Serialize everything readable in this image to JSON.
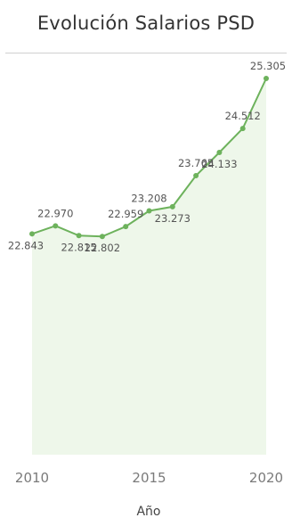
{
  "title": "Evolución Salarios PSD",
  "chart_data": {
    "type": "area",
    "title": "Evolución Salarios PSD",
    "xlabel": "Año",
    "ylabel": "",
    "x": [
      2010,
      2011,
      2012,
      2013,
      2014,
      2015,
      2016,
      2017,
      2018,
      2019,
      2020
    ],
    "values": [
      22843,
      22970,
      22815,
      22802,
      22959,
      23208,
      23273,
      23765,
      24133,
      24512,
      25305
    ],
    "data_labels": [
      "22.843",
      "22.970",
      "22.815",
      "22.802",
      "22.959",
      "23.208",
      "23.273",
      "23.765",
      "24.133",
      "24.512",
      "25.305"
    ],
    "x_ticks": [
      "2010",
      "2015",
      "2020"
    ],
    "grid": false,
    "colors": {
      "line": "#6db25c",
      "fill": "#eef7ea"
    }
  }
}
